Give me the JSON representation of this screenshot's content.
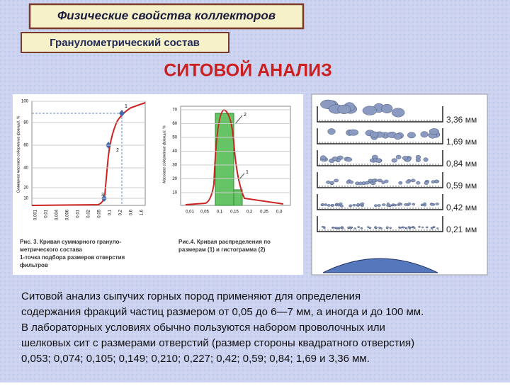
{
  "header": {
    "title": "Физические свойства коллекторов",
    "subtitle": "Гранулометрический состав",
    "heading": "СИТОВОЙ АНАЛИЗ"
  },
  "figure_left": {
    "chart1": {
      "y_label": "Суммарное массовое содержание фракций, %",
      "yticks": [
        "100",
        "80",
        "60",
        "40",
        "20",
        "10"
      ],
      "xticks": [
        "0,001",
        "0,01",
        "0,004",
        "0,006",
        "0,01",
        "0,02",
        "0,05",
        "0,1",
        "0,2",
        "0,6",
        "1,6"
      ],
      "points": [
        "1",
        "2",
        "3"
      ],
      "caption": [
        "Рис. 3. Кривая суммарного грануло-",
        "метрического состава",
        "1-точка подбора размеров отверстия",
        "фильтров"
      ]
    },
    "chart2": {
      "y_label": "Массовое содержание фракций, %",
      "yticks": [
        "70",
        "60",
        "50",
        "40",
        "30",
        "20",
        "10"
      ],
      "xticks": [
        "0,01",
        "0,05",
        "0,1",
        "0,15",
        "0,2",
        "0,25",
        "0,3"
      ],
      "curves": [
        "2",
        "1"
      ],
      "caption": [
        "Рис.4. Кривая распределения по",
        "размерам (1) и гистограмма (2)"
      ]
    }
  },
  "figure_right": {
    "sieves": [
      "3,36 мм",
      "1,69 мм",
      "0,84 мм",
      "0,59 мм",
      "0,42 мм",
      "0,21 мм"
    ]
  },
  "paragraph": [
    "Ситовой анализ сыпучих горных пород применяют для определения",
    "содержания фракций частиц размером от 0,05 до 6—7 мм, а иногда и до 100 мм.",
    "В лабораторных условиях обычно пользуются набором проволочных или",
    "шелковых сит с размерами отверстий (размер стороны квадратного отверстия)",
    "0,053; 0,074; 0,105; 0,149; 0,210; 0,227; 0,42; 0,59; 0,84; 1,69 и 3,36 мм."
  ]
}
